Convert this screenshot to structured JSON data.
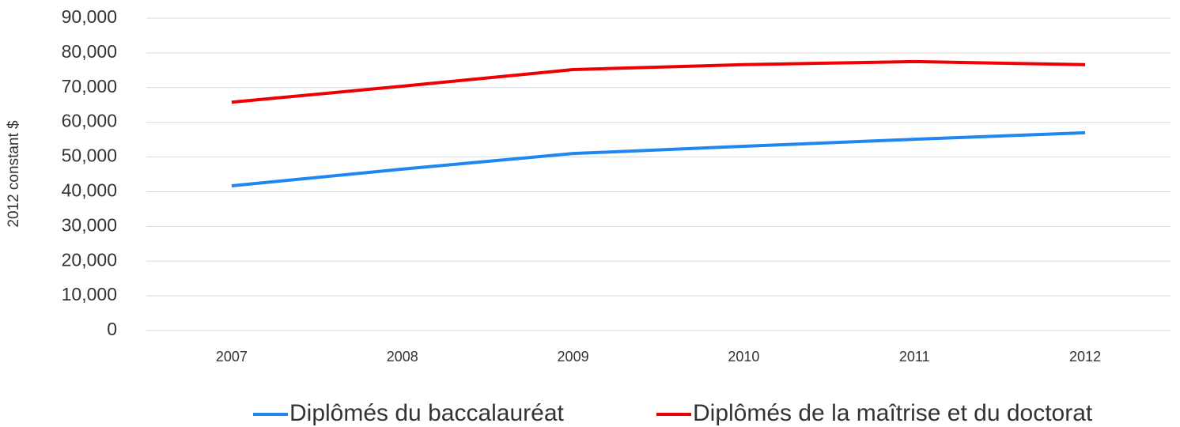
{
  "chart_data": {
    "type": "line",
    "ylabel": "2012 constant $",
    "categories": [
      "2007",
      "2008",
      "2009",
      "2010",
      "2011",
      "2012"
    ],
    "series": [
      {
        "name": "Diplômés du baccalauréat",
        "color": "#1e88f0",
        "values": [
          41700,
          46500,
          51000,
          53100,
          55100,
          57000
        ]
      },
      {
        "name": "Diplômés de la maîtrise et du doctorat",
        "color": "#ee0000",
        "values": [
          65800,
          70400,
          75200,
          76600,
          77500,
          76600
        ]
      }
    ],
    "ylim": [
      0,
      90000
    ],
    "yticks": [
      0,
      {
        "value": 10000,
        "label": "10,000"
      },
      {
        "value": 20000,
        "label": "20,000"
      },
      {
        "value": 30000,
        "label": "30,000"
      },
      {
        "value": 40000,
        "label": "40,000"
      },
      {
        "value": 50000,
        "label": "50,000"
      },
      {
        "value": 60000,
        "label": "60,000"
      },
      {
        "value": 70000,
        "label": "70,000"
      },
      {
        "value": 80000,
        "label": "80,000"
      },
      {
        "value": 90000,
        "label": "90,000"
      }
    ],
    "grid": true,
    "legend": "bottom"
  }
}
